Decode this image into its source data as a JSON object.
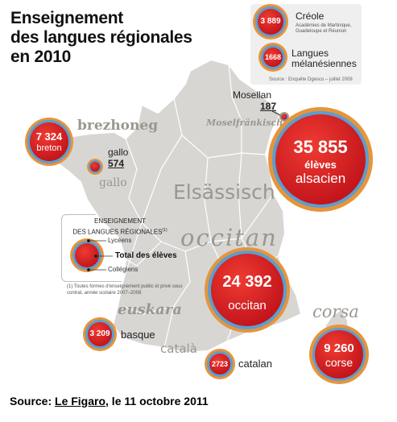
{
  "title_lines": [
    "Enseignement",
    "des langues régionales",
    "en 2010"
  ],
  "source": {
    "label": "Source: ",
    "publication": "Le Figaro",
    "date": ", le 11 octobre 2011"
  },
  "legend": {
    "creole": {
      "value": "3 889",
      "title": "Créole",
      "sub_1": "Académies de Martinique,",
      "sub_2": "Guadeloupe et Réunion"
    },
    "melanesian": {
      "value": "1668",
      "title_1": "Langues",
      "title_2": "mélanésiennes"
    },
    "note": "Source : Enquête Dgesco – juillet 2008"
  },
  "inset": {
    "heading_1": "ENSEIGNEMENT",
    "heading_2": "DES LANGUES RÉGIONALES",
    "heading_sup": "(1)",
    "lyceens": "Lycéens",
    "total": "Total des élèves",
    "colleges": "Collégiens",
    "footnote": "(1) Toutes formes d'enseignement public et privé sous contrat, année scolaire 2007–2008"
  },
  "regions": {
    "brezhoneg": "brezhoneg",
    "gallo": "gallo",
    "moselfrankisch": "Moselfränkisch",
    "elsassisch": "Elsässisch",
    "occitan": "occitan",
    "euskara": "euskara",
    "catala": "català",
    "corsa": "corsa"
  },
  "bubbles": {
    "alsacien": {
      "value": "35 855",
      "unit": "élèves",
      "lang": "alsacien"
    },
    "breton": {
      "value": "7 324",
      "lang": "breton"
    },
    "occitan": {
      "value": "24 392",
      "lang": "occitan"
    },
    "corse": {
      "value": "9 260",
      "lang": "corse"
    },
    "basque": {
      "value": "3 209",
      "lang": "basque"
    },
    "catalan": {
      "value": "2723",
      "lang": "catalan"
    },
    "gallo": {
      "lang": "gallo",
      "value": "574"
    },
    "mosellan": {
      "lang": "Mosellan",
      "value": "187"
    }
  },
  "colors": {
    "map": "#d8d6d3",
    "ring": "#e7943b",
    "blue": "#5b9ed0",
    "red": "#d71a1f",
    "region_text": "#9a9791"
  }
}
